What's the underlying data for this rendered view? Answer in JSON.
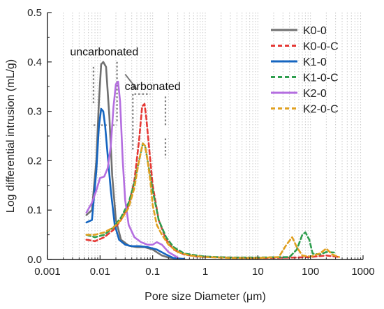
{
  "chart_data": {
    "type": "line",
    "title": "",
    "xlabel": "Pore size Diameter (μm)",
    "ylabel": "Log differential intrusion (mL/g)",
    "xscale": "log",
    "xlim": [
      0.001,
      1000
    ],
    "ylim": [
      0,
      0.5
    ],
    "x_ticks": [
      0.001,
      0.01,
      0.1,
      1,
      10,
      100,
      1000
    ],
    "x_tick_labels": [
      "0.001",
      "0.01",
      "0.1",
      "1",
      "10",
      "100",
      "1000"
    ],
    "y_ticks": [
      0,
      0.1,
      0.2,
      0.3,
      0.4,
      0.5
    ],
    "y_tick_labels": [
      "0.0",
      "0.1",
      "0.2",
      "0.3",
      "0.4",
      "0.5"
    ],
    "grid": "vertical dotted lines",
    "legend_position": "top-right",
    "annotations": [
      {
        "text": "uncarbonated",
        "x": 0.012,
        "y": 0.42
      },
      {
        "text": "carbonated",
        "x": 0.1,
        "y": 0.35
      }
    ],
    "series": [
      {
        "name": "K0-0",
        "color": "#707070",
        "dash": "solid",
        "x": [
          0.0055,
          0.007,
          0.0085,
          0.0095,
          0.0105,
          0.0115,
          0.013,
          0.015,
          0.017,
          0.02,
          0.025,
          0.035,
          0.05,
          0.07,
          0.1,
          0.15,
          0.2,
          0.3
        ],
        "y": [
          0.09,
          0.1,
          0.2,
          0.32,
          0.395,
          0.4,
          0.39,
          0.29,
          0.17,
          0.08,
          0.04,
          0.028,
          0.025,
          0.025,
          0.02,
          0.008,
          0.004,
          0.002
        ]
      },
      {
        "name": "K0-0-C",
        "color": "#e53935",
        "dash": "dashed",
        "x": [
          0.0055,
          0.008,
          0.012,
          0.018,
          0.025,
          0.035,
          0.045,
          0.055,
          0.063,
          0.07,
          0.075,
          0.085,
          0.1,
          0.13,
          0.18,
          0.25,
          0.4,
          0.7,
          1,
          3,
          10,
          50,
          100,
          200,
          350
        ],
        "y": [
          0.04,
          0.037,
          0.045,
          0.06,
          0.08,
          0.11,
          0.16,
          0.24,
          0.31,
          0.315,
          0.29,
          0.23,
          0.15,
          0.08,
          0.04,
          0.02,
          0.01,
          0.006,
          0.005,
          0.004,
          0.003,
          0.004,
          0.005,
          0.008,
          0.005
        ]
      },
      {
        "name": "K1-0",
        "color": "#1565c0",
        "dash": "solid",
        "x": [
          0.0055,
          0.007,
          0.0085,
          0.0095,
          0.0105,
          0.0115,
          0.0125,
          0.014,
          0.016,
          0.019,
          0.023,
          0.03,
          0.04,
          0.055,
          0.08,
          0.12,
          0.18,
          0.25,
          0.4
        ],
        "y": [
          0.075,
          0.08,
          0.18,
          0.27,
          0.305,
          0.3,
          0.27,
          0.21,
          0.14,
          0.07,
          0.04,
          0.03,
          0.027,
          0.027,
          0.025,
          0.02,
          0.01,
          0.003,
          0.001
        ]
      },
      {
        "name": "K1-0-C",
        "color": "#2e9e4e",
        "dash": "dashed",
        "x": [
          0.0055,
          0.008,
          0.012,
          0.018,
          0.025,
          0.035,
          0.045,
          0.055,
          0.065,
          0.072,
          0.08,
          0.1,
          0.13,
          0.18,
          0.25,
          0.4,
          0.7,
          1,
          3,
          10,
          40,
          55,
          70,
          80,
          95,
          110,
          150,
          200,
          300
        ],
        "y": [
          0.05,
          0.045,
          0.05,
          0.065,
          0.085,
          0.115,
          0.155,
          0.2,
          0.235,
          0.23,
          0.2,
          0.14,
          0.08,
          0.045,
          0.025,
          0.012,
          0.008,
          0.006,
          0.004,
          0.004,
          0.005,
          0.02,
          0.05,
          0.055,
          0.04,
          0.012,
          0.01,
          0.015,
          0.014
        ]
      },
      {
        "name": "K2-0",
        "color": "#b46ee0",
        "dash": "solid",
        "x": [
          0.0055,
          0.007,
          0.0085,
          0.01,
          0.012,
          0.014,
          0.016,
          0.018,
          0.02,
          0.022,
          0.024,
          0.027,
          0.03,
          0.035,
          0.045,
          0.06,
          0.08,
          0.1,
          0.12,
          0.15,
          0.2,
          0.3
        ],
        "y": [
          0.095,
          0.115,
          0.14,
          0.165,
          0.168,
          0.185,
          0.23,
          0.31,
          0.355,
          0.36,
          0.32,
          0.2,
          0.12,
          0.07,
          0.045,
          0.035,
          0.03,
          0.03,
          0.035,
          0.03,
          0.015,
          0.004
        ]
      },
      {
        "name": "K2-0-C",
        "color": "#e0a020",
        "dash": "dashed",
        "x": [
          0.0055,
          0.008,
          0.012,
          0.018,
          0.025,
          0.035,
          0.045,
          0.055,
          0.065,
          0.072,
          0.08,
          0.09,
          0.1,
          0.12,
          0.15,
          0.2,
          0.3,
          0.5,
          1,
          3,
          10,
          25,
          35,
          45,
          55,
          70,
          100,
          150,
          200,
          260,
          350
        ],
        "y": [
          0.05,
          0.05,
          0.055,
          0.065,
          0.08,
          0.105,
          0.145,
          0.2,
          0.235,
          0.23,
          0.2,
          0.16,
          0.11,
          0.07,
          0.05,
          0.03,
          0.015,
          0.008,
          0.005,
          0.003,
          0.003,
          0.005,
          0.03,
          0.045,
          0.025,
          0.008,
          0.006,
          0.012,
          0.022,
          0.01,
          0.005
        ]
      }
    ]
  }
}
